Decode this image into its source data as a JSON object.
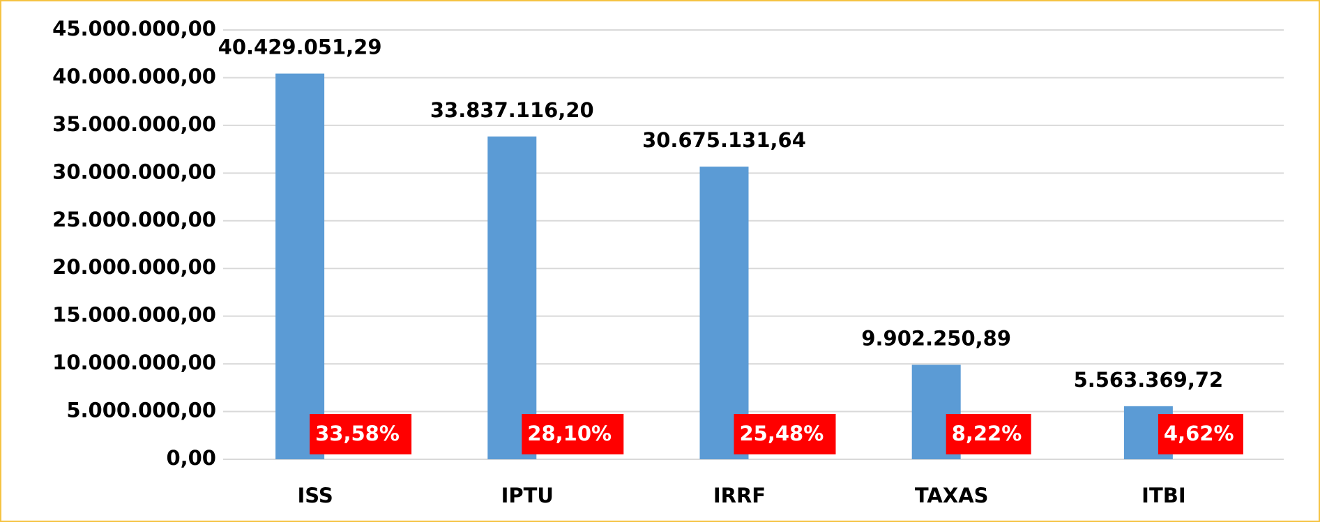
{
  "chart_data": {
    "type": "bar",
    "categories": [
      "ISS",
      "IPTU",
      "IRRF",
      "TAXAS",
      "ITBI"
    ],
    "series": [
      {
        "color": "#5b9bd5",
        "values": [
          40429051.29,
          33837116.2,
          30675131.64,
          9902250.89,
          5563369.72
        ],
        "value_labels": [
          "40.429.051,29",
          "33.837.116,20",
          "30.675.131,64",
          "9.902.250,89",
          "5.563.369,72"
        ]
      }
    ],
    "shares": {
      "color": "#ff0000",
      "values": [
        33.58,
        28.1,
        25.48,
        8.22,
        4.62
      ],
      "value_labels": [
        "33,58%",
        "28,10%",
        "25,48%",
        "8,22%",
        "4,62%"
      ]
    },
    "ylim": [
      0,
      45000000
    ],
    "yticks": [
      {
        "value": 0,
        "label": "0,00"
      },
      {
        "value": 5000000,
        "label": "5.000.000,00"
      },
      {
        "value": 10000000,
        "label": "10.000.000,00"
      },
      {
        "value": 15000000,
        "label": "15.000.000,00"
      },
      {
        "value": 20000000,
        "label": "20.000.000,00"
      },
      {
        "value": 25000000,
        "label": "25.000.000,00"
      },
      {
        "value": 30000000,
        "label": "30.000.000,00"
      },
      {
        "value": 35000000,
        "label": "35.000.000,00"
      },
      {
        "value": 40000000,
        "label": "40.000.000,00"
      },
      {
        "value": 45000000,
        "label": "45.000.000,00"
      }
    ],
    "grid": true
  }
}
